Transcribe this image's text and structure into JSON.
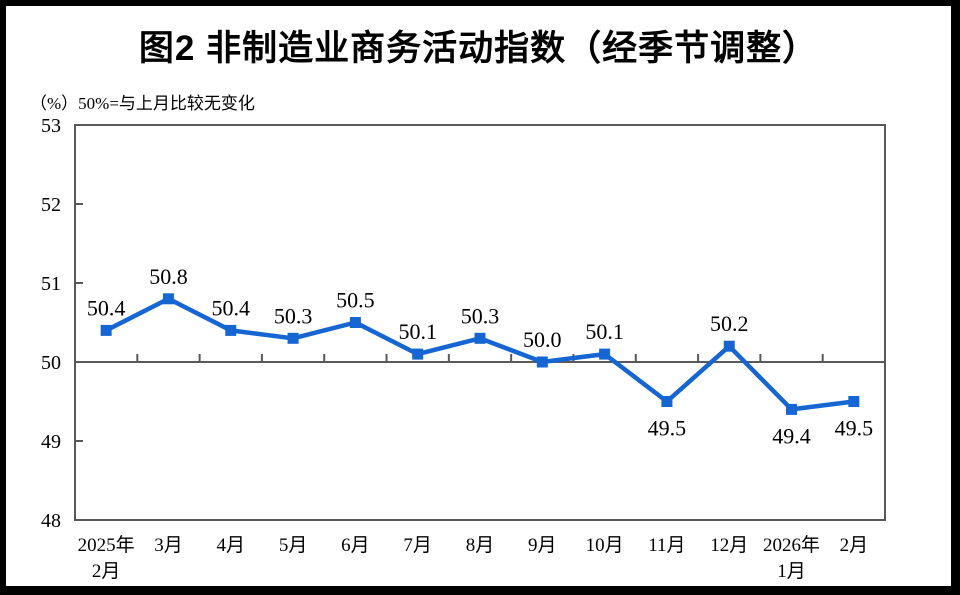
{
  "page": {
    "title": "图2  非制造业商务活动指数（经季节调整）",
    "subtitle": "（%）50%=与上月比较无变化"
  },
  "chart_data": {
    "type": "line",
    "title": "图2 非制造业商务活动指数（经季节调整）",
    "unit_note": "（%）50%=与上月比较无变化",
    "categories": [
      "2025年2月",
      "3月",
      "4月",
      "5月",
      "6月",
      "7月",
      "8月",
      "9月",
      "10月",
      "11月",
      "12月",
      "2026年1月",
      "2月"
    ],
    "category_lines": [
      [
        "2025年",
        "2月"
      ],
      [
        "3月"
      ],
      [
        "4月"
      ],
      [
        "5月"
      ],
      [
        "6月"
      ],
      [
        "7月"
      ],
      [
        "8月"
      ],
      [
        "9月"
      ],
      [
        "10月"
      ],
      [
        "11月"
      ],
      [
        "12月"
      ],
      [
        "2026年",
        "1月"
      ],
      [
        "2月"
      ]
    ],
    "series": [
      {
        "name": "非制造业商务活动指数",
        "values": [
          50.4,
          50.8,
          50.4,
          50.3,
          50.5,
          50.1,
          50.3,
          50.0,
          50.1,
          49.5,
          50.2,
          49.4,
          49.5
        ]
      }
    ],
    "data_labels": [
      "50.4",
      "50.8",
      "50.4",
      "50.3",
      "50.5",
      "50.1",
      "50.3",
      "50.0",
      "50.1",
      "49.5",
      "50.2",
      "49.4",
      "49.5"
    ],
    "label_positions": [
      "above",
      "above",
      "above",
      "above",
      "above",
      "above",
      "above",
      "above",
      "above",
      "below",
      "above",
      "below",
      "below"
    ],
    "ylim": [
      48,
      53
    ],
    "yticks": [
      "48",
      "49",
      "50",
      "51",
      "52",
      "53"
    ],
    "reference_line": 50,
    "grid": "off",
    "legend": "none",
    "marker": "square",
    "line_color": "#1565d2",
    "marker_color": "#1565d2",
    "axis_color": "#595959",
    "text_color": "#000000"
  }
}
